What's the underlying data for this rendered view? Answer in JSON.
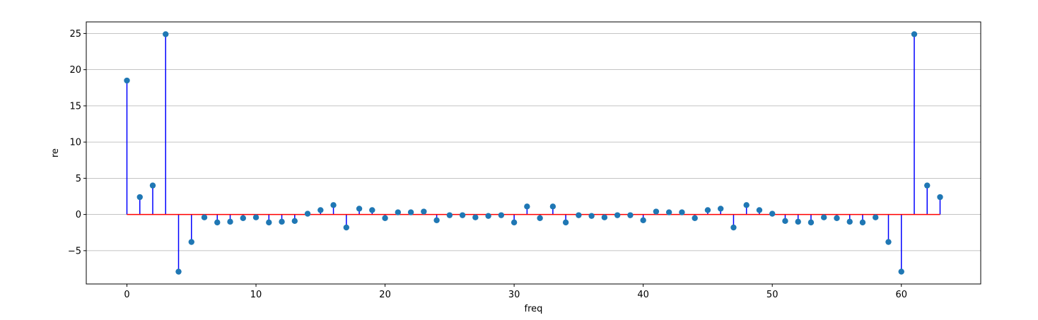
{
  "chart_data": {
    "type": "stem",
    "xlabel": "freq",
    "ylabel": "re",
    "xlim": [
      -3.15,
      66.15
    ],
    "ylim": [
      -9.6,
      26.6
    ],
    "xticks": [
      0,
      10,
      20,
      30,
      40,
      50,
      60
    ],
    "yticks": [
      -5,
      0,
      5,
      10,
      15,
      20,
      25
    ],
    "grid": "y",
    "colors": {
      "stem": "#0000ff",
      "marker": "#1f77b4",
      "baseline": "#ff0000",
      "grid": "#b0b0b0"
    },
    "x": [
      0,
      1,
      2,
      3,
      4,
      5,
      6,
      7,
      8,
      9,
      10,
      11,
      12,
      13,
      14,
      15,
      16,
      17,
      18,
      19,
      20,
      21,
      22,
      23,
      24,
      25,
      26,
      27,
      28,
      29,
      30,
      31,
      32,
      33,
      34,
      35,
      36,
      37,
      38,
      39,
      40,
      41,
      42,
      43,
      44,
      45,
      46,
      47,
      48,
      49,
      50,
      51,
      52,
      53,
      54,
      55,
      56,
      57,
      58,
      59,
      60,
      61,
      62,
      63
    ],
    "values": [
      18.5,
      2.4,
      4.0,
      24.9,
      -7.9,
      -3.8,
      -0.4,
      -1.1,
      -1.0,
      -0.5,
      -0.4,
      -1.1,
      -1.0,
      -0.9,
      0.1,
      0.6,
      1.3,
      -1.8,
      0.8,
      0.6,
      -0.5,
      0.3,
      0.3,
      0.4,
      -0.8,
      -0.1,
      -0.1,
      -0.4,
      -0.2,
      -0.1,
      -1.1,
      1.1,
      -0.5,
      1.1,
      -1.1,
      -0.1,
      -0.2,
      -0.4,
      -0.1,
      -0.1,
      -0.8,
      0.4,
      0.3,
      0.3,
      -0.5,
      0.6,
      0.8,
      -1.8,
      1.3,
      0.6,
      0.1,
      -0.9,
      -1.0,
      -1.1,
      -0.4,
      -0.5,
      -1.0,
      -1.1,
      -0.4,
      -3.8,
      -7.9,
      24.9,
      4.0,
      2.4
    ]
  }
}
